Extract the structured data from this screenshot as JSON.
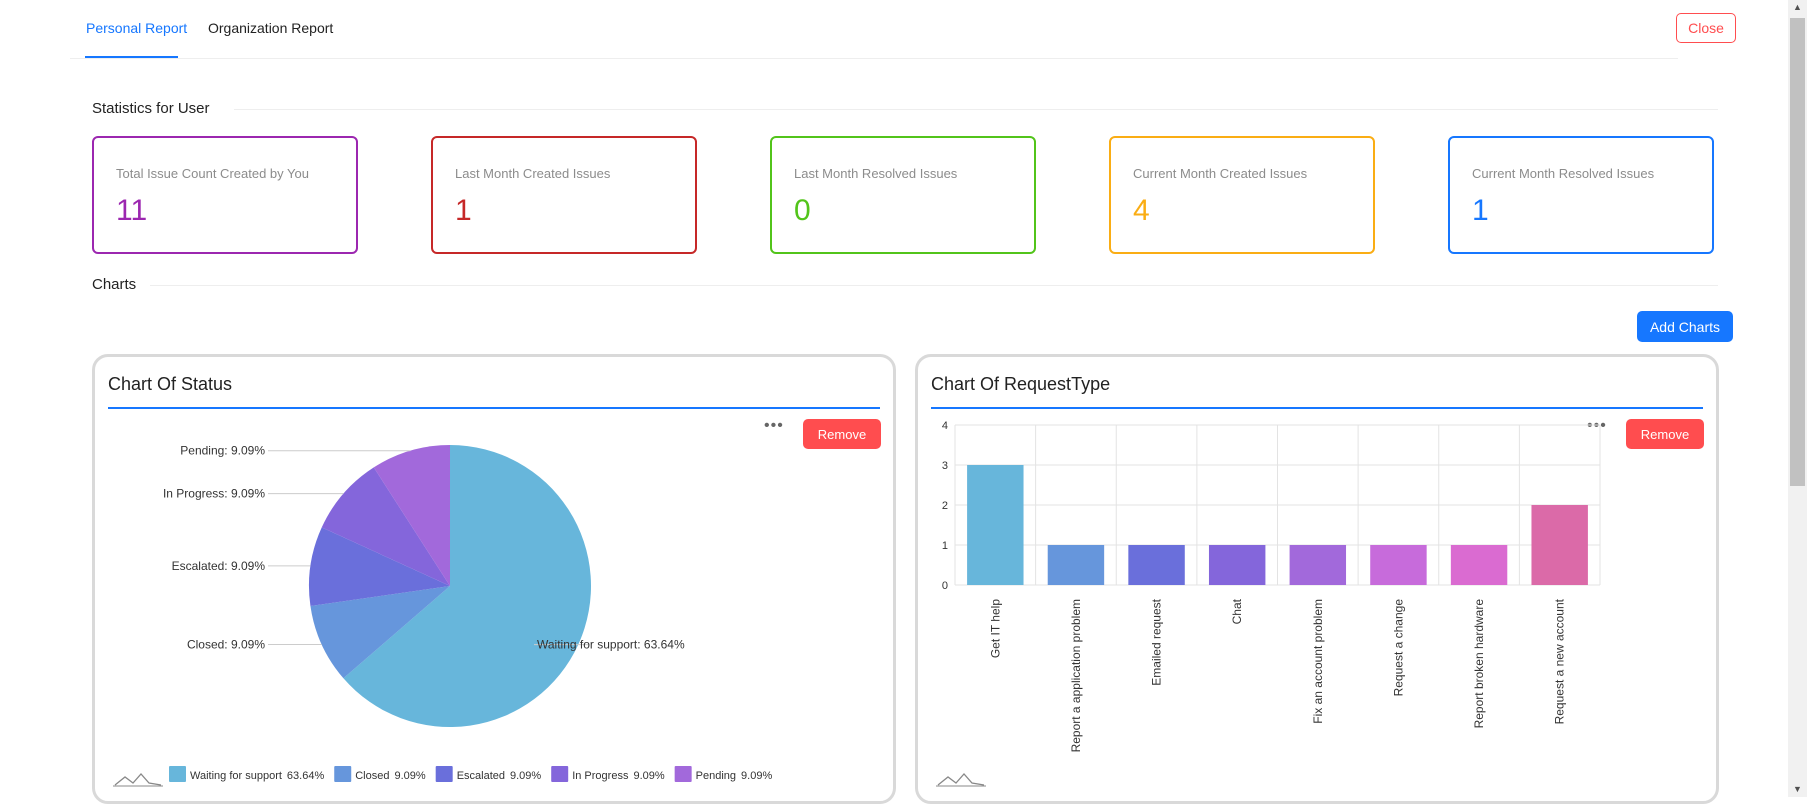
{
  "tabs": [
    {
      "label": "Personal Report",
      "active": true
    },
    {
      "label": "Organization Report",
      "active": false
    }
  ],
  "close_label": "Close",
  "sections": {
    "stats_title": "Statistics for User",
    "charts_title": "Charts"
  },
  "stats": [
    {
      "label": "Total Issue Count Created by You",
      "value": "11",
      "color": "#9c27b0"
    },
    {
      "label": "Last Month Created Issues",
      "value": "1",
      "color": "#c62828"
    },
    {
      "label": "Last Month Resolved Issues",
      "value": "0",
      "color": "#52c41a"
    },
    {
      "label": "Current Month Created Issues",
      "value": "4",
      "color": "#faad14"
    },
    {
      "label": "Current Month Resolved Issues",
      "value": "1",
      "color": "#1677ff"
    }
  ],
  "add_charts_label": "Add Charts",
  "remove_label": "Remove",
  "more_icon": "ellipsis-icon",
  "toolbar_icon": "line-chart-icon",
  "chart_data": [
    {
      "type": "pie",
      "title": "Chart Of Status",
      "legend_position": "bottom-left",
      "slices": [
        {
          "label": "Waiting for support",
          "percent": 63.64,
          "color": "#67b6db",
          "data_label": "Waiting for support: 63.64%",
          "legend_pct": "63.64%"
        },
        {
          "label": "Closed",
          "percent": 9.09,
          "color": "#6696dc",
          "data_label": "Closed: 9.09%",
          "legend_pct": "9.09%"
        },
        {
          "label": "Escalated",
          "percent": 9.09,
          "color": "#6a6fdb",
          "data_label": "Escalated: 9.09%",
          "legend_pct": "9.09%"
        },
        {
          "label": "In Progress",
          "percent": 9.09,
          "color": "#8466db",
          "data_label": "In Progress: 9.09%",
          "legend_pct": "9.09%"
        },
        {
          "label": "Pending",
          "percent": 9.09,
          "color": "#a269db",
          "data_label": "Pending: 9.09%",
          "legend_pct": "9.09%"
        }
      ]
    },
    {
      "type": "bar",
      "title": "Chart Of RequestType",
      "categories": [
        "Get IT help",
        "Report a application problem",
        "Emailed request",
        "Chat",
        "Fix an account problem",
        "Request a change",
        "Report broken hardware",
        "Request a new account"
      ],
      "values": [
        3,
        1,
        1,
        1,
        1,
        1,
        1,
        2
      ],
      "colors": [
        "#67b6db",
        "#6696dc",
        "#6a6fdb",
        "#8466db",
        "#a269db",
        "#c76bdb",
        "#da6bd1",
        "#db6aa8"
      ],
      "ylim": [
        0,
        4
      ],
      "yticks": [
        "0",
        "1",
        "2",
        "3",
        "4"
      ],
      "grid": true
    }
  ]
}
